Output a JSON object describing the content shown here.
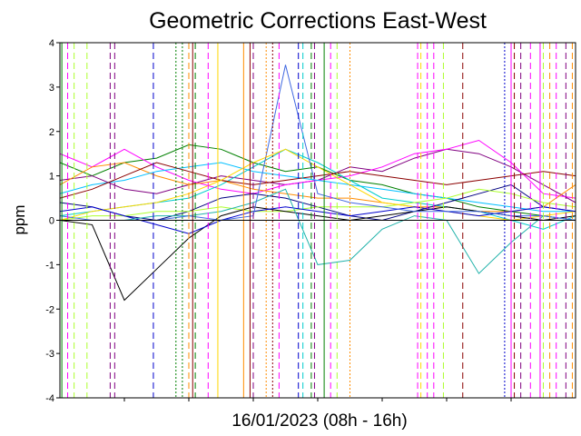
{
  "chart_data": {
    "type": "line",
    "title": "Geometric Corrections East-West",
    "xlabel": "16/01/2023 (08h - 16h)",
    "ylabel": "ppm",
    "xlim": [
      0,
      8
    ],
    "ylim": [
      -4,
      4
    ],
    "yticks": [
      -4,
      -3,
      -2,
      -1,
      0,
      1,
      2,
      3,
      4
    ],
    "x_minor_ticks": 8,
    "grid": false,
    "legend": "none",
    "series": [
      {
        "color": "#008000",
        "style": "solid",
        "x": [
          0,
          0.5,
          1,
          1.5,
          2,
          2.5,
          3,
          3.5,
          4,
          4.5,
          5,
          5.5,
          6,
          6.5,
          7,
          7.5,
          8
        ],
        "y": [
          1.3,
          1.0,
          1.3,
          1.4,
          1.7,
          1.6,
          1.3,
          1.1,
          1.2,
          0.9,
          0.8,
          0.6,
          0.5,
          0.3,
          0.2,
          0.1,
          0.0
        ]
      },
      {
        "color": "#800080",
        "style": "solid",
        "x": [
          0,
          0.5,
          1,
          1.5,
          2,
          2.5,
          3,
          3.5,
          4,
          4.5,
          5,
          5.5,
          6,
          6.5,
          7,
          7.5,
          8
        ],
        "y": [
          0.9,
          1.0,
          0.7,
          0.6,
          0.8,
          1.0,
          0.9,
          0.8,
          0.9,
          1.2,
          1.1,
          1.4,
          1.6,
          1.5,
          1.2,
          0.8,
          0.4
        ]
      },
      {
        "color": "#ff00ff",
        "style": "solid",
        "x": [
          0,
          0.5,
          1,
          1.5,
          2,
          2.5,
          3,
          3.5,
          4,
          4.5,
          5,
          5.5,
          6,
          6.5,
          7,
          7.5,
          8
        ],
        "y": [
          1.5,
          1.2,
          1.6,
          1.2,
          0.9,
          0.7,
          0.6,
          0.8,
          0.9,
          1.0,
          1.2,
          1.5,
          1.6,
          1.8,
          1.3,
          0.6,
          0.5
        ]
      },
      {
        "color": "#ff8c00",
        "style": "solid",
        "x": [
          0,
          0.5,
          1,
          1.5,
          2,
          2.5,
          3,
          3.5,
          4,
          4.5,
          5,
          5.5,
          6,
          6.5,
          7,
          7.5,
          8
        ],
        "y": [
          0.8,
          1.2,
          1.3,
          1.0,
          0.8,
          0.9,
          0.7,
          0.6,
          0.5,
          0.5,
          0.4,
          0.3,
          0.3,
          0.2,
          0.2,
          0.3,
          0.8
        ]
      },
      {
        "color": "#00bfff",
        "style": "solid",
        "x": [
          0,
          0.5,
          1,
          1.5,
          2,
          2.5,
          3,
          3.5,
          4,
          4.5,
          5,
          5.5,
          6,
          6.5,
          7,
          7.5,
          8
        ],
        "y": [
          0.6,
          0.8,
          0.9,
          1.1,
          1.2,
          1.3,
          1.1,
          1.0,
          0.9,
          0.8,
          0.7,
          0.6,
          0.5,
          0.4,
          0.3,
          0.2,
          0.2
        ]
      },
      {
        "color": "#00cccc",
        "style": "solid",
        "x": [
          0,
          0.5,
          1,
          1.5,
          2,
          2.5,
          3,
          3.5,
          4,
          4.5,
          5,
          5.5,
          6,
          6.5,
          7,
          7.5,
          8
        ],
        "y": [
          0.1,
          0.2,
          0.3,
          0.4,
          0.5,
          0.8,
          1.2,
          1.6,
          1.3,
          0.9,
          0.5,
          0.4,
          0.3,
          0.2,
          0.0,
          -0.2,
          0.1
        ]
      },
      {
        "color": "#000080",
        "style": "solid",
        "x": [
          0,
          0.5,
          1,
          1.5,
          2,
          2.5,
          3,
          3.5,
          4,
          4.5,
          5,
          5.5,
          6,
          6.5,
          7,
          7.5,
          8
        ],
        "y": [
          0.4,
          0.3,
          0.1,
          0.0,
          0.2,
          0.5,
          0.6,
          0.5,
          0.3,
          0.1,
          0.0,
          0.2,
          0.4,
          0.6,
          0.8,
          0.3,
          0.2
        ]
      },
      {
        "color": "#8b0000",
        "style": "solid",
        "x": [
          0,
          0.5,
          1,
          1.5,
          2,
          2.5,
          3,
          3.5,
          4,
          4.5,
          5,
          5.5,
          6,
          6.5,
          7,
          7.5,
          8
        ],
        "y": [
          0.5,
          0.7,
          1.0,
          1.3,
          1.1,
          0.9,
          0.8,
          0.9,
          1.0,
          1.1,
          1.0,
          0.9,
          0.8,
          0.9,
          1.0,
          1.1,
          1.0
        ]
      },
      {
        "color": "#adff2f",
        "style": "solid",
        "x": [
          0,
          0.5,
          1,
          1.5,
          2,
          2.5,
          3,
          3.5,
          4,
          4.5,
          5,
          5.5,
          6,
          6.5,
          7,
          7.5,
          8
        ],
        "y": [
          0.0,
          0.1,
          0.1,
          0.2,
          0.2,
          0.3,
          0.2,
          0.2,
          0.3,
          0.3,
          0.3,
          0.4,
          0.5,
          0.7,
          0.6,
          0.4,
          0.3
        ]
      },
      {
        "color": "#ffd700",
        "style": "solid",
        "x": [
          0,
          0.5,
          1,
          1.5,
          2,
          2.5,
          3,
          3.5,
          4,
          4.5,
          5,
          5.5,
          6,
          6.5,
          7,
          7.5,
          8
        ],
        "y": [
          0.0,
          0.2,
          0.3,
          0.4,
          0.6,
          0.9,
          1.3,
          1.6,
          1.2,
          0.8,
          0.4,
          0.3,
          0.2,
          0.1,
          0.0,
          0.1,
          0.2
        ]
      },
      {
        "color": "#000000",
        "style": "solid",
        "x": [
          0,
          0.5,
          1,
          1.5,
          2,
          2.5,
          3,
          3.5,
          4,
          4.5,
          5,
          5.5,
          6,
          6.5,
          7,
          7.5,
          8
        ],
        "y": [
          0.0,
          -0.1,
          -1.8,
          -1.1,
          -0.4,
          0.1,
          0.3,
          0.2,
          0.1,
          0.0,
          0.1,
          0.2,
          0.3,
          0.2,
          0.1,
          0.0,
          0.1
        ]
      },
      {
        "color": "#0000cd",
        "style": "solid",
        "x": [
          0,
          0.5,
          1,
          1.5,
          2,
          2.5,
          3,
          3.5,
          4,
          4.5,
          5,
          5.5,
          6,
          6.5,
          7,
          7.5,
          8
        ],
        "y": [
          0.2,
          0.3,
          0.1,
          -0.1,
          -0.3,
          0.0,
          0.2,
          0.3,
          0.2,
          0.1,
          0.2,
          0.3,
          0.2,
          0.1,
          0.2,
          0.3,
          0.2
        ]
      },
      {
        "color": "#20b2aa",
        "style": "solid",
        "x": [
          0,
          0.5,
          1,
          1.5,
          2,
          2.5,
          3,
          3.5,
          4,
          4.5,
          5,
          5.5,
          6,
          6.5,
          7,
          7.5,
          8
        ],
        "y": [
          0.0,
          0.0,
          0.0,
          0.1,
          0.1,
          0.2,
          0.4,
          0.7,
          -1.0,
          -0.9,
          -0.2,
          0.1,
          0.0,
          -1.2,
          -0.5,
          0.1,
          0.0
        ]
      },
      {
        "color": "#4169e1",
        "style": "solid",
        "x": [
          0,
          0.5,
          1,
          1.5,
          2,
          2.5,
          3,
          3.5,
          4,
          4.5,
          5,
          5.5,
          6,
          6.5,
          7,
          7.5,
          8
        ],
        "y": [
          0.1,
          0.0,
          0.0,
          0.0,
          0.1,
          0.0,
          0.1,
          3.5,
          0.6,
          0.4,
          0.3,
          0.2,
          0.2,
          0.2,
          0.1,
          0.1,
          0.0
        ]
      }
    ],
    "vlines": [
      {
        "x": 0.03,
        "color": "#008000",
        "style": "solid"
      },
      {
        "x": 0.12,
        "color": "#ff00ff",
        "style": "dashed"
      },
      {
        "x": 0.22,
        "color": "#adff2f",
        "style": "dashed"
      },
      {
        "x": 0.42,
        "color": "#adff2f",
        "style": "dashed"
      },
      {
        "x": 0.78,
        "color": "#800080",
        "style": "dashed"
      },
      {
        "x": 0.85,
        "color": "#800080",
        "style": "dashed"
      },
      {
        "x": 1.45,
        "color": "#0000cd",
        "style": "dashed"
      },
      {
        "x": 1.8,
        "color": "#008000",
        "style": "dotted"
      },
      {
        "x": 1.9,
        "color": "#008000",
        "style": "dotted"
      },
      {
        "x": 2.0,
        "color": "#ff8c00",
        "style": "dashed"
      },
      {
        "x": 2.06,
        "color": "#8b0000",
        "style": "solid"
      },
      {
        "x": 2.1,
        "color": "#008000",
        "style": "dashed"
      },
      {
        "x": 2.3,
        "color": "#ff00ff",
        "style": "dashed"
      },
      {
        "x": 2.45,
        "color": "#ffd700",
        "style": "solid"
      },
      {
        "x": 2.85,
        "color": "#ff8c00",
        "style": "solid"
      },
      {
        "x": 2.95,
        "color": "#8b0000",
        "style": "solid"
      },
      {
        "x": 3.0,
        "color": "#800080",
        "style": "dashed"
      },
      {
        "x": 3.2,
        "color": "#ff8c00",
        "style": "dotted"
      },
      {
        "x": 3.3,
        "color": "#8b0000",
        "style": "dotted"
      },
      {
        "x": 3.4,
        "color": "#ff00ff",
        "style": "dashed"
      },
      {
        "x": 3.7,
        "color": "#0000cd",
        "style": "dashed"
      },
      {
        "x": 3.77,
        "color": "#00cccc",
        "style": "dashed"
      },
      {
        "x": 3.9,
        "color": "#008000",
        "style": "dashed"
      },
      {
        "x": 3.95,
        "color": "#800080",
        "style": "dashed"
      },
      {
        "x": 4.1,
        "color": "#008000",
        "style": "solid"
      },
      {
        "x": 4.2,
        "color": "#ff00ff",
        "style": "dashed"
      },
      {
        "x": 4.3,
        "color": "#adff2f",
        "style": "dashed"
      },
      {
        "x": 4.5,
        "color": "#ff8c00",
        "style": "dotted"
      },
      {
        "x": 5.55,
        "color": "#ff00ff",
        "style": "dashed"
      },
      {
        "x": 5.6,
        "color": "#ffd700",
        "style": "dashed"
      },
      {
        "x": 5.7,
        "color": "#ff00ff",
        "style": "dashed"
      },
      {
        "x": 5.8,
        "color": "#ff00ff",
        "style": "dashed"
      },
      {
        "x": 5.95,
        "color": "#adff2f",
        "style": "dashed"
      },
      {
        "x": 6.25,
        "color": "#8b0000",
        "style": "dashed"
      },
      {
        "x": 6.9,
        "color": "#0000cd",
        "style": "dotted"
      },
      {
        "x": 7.0,
        "color": "#ff00ff",
        "style": "solid"
      },
      {
        "x": 7.05,
        "color": "#8b0000",
        "style": "dashed"
      },
      {
        "x": 7.15,
        "color": "#800080",
        "style": "dashed"
      },
      {
        "x": 7.3,
        "color": "#ff00ff",
        "style": "dashed"
      },
      {
        "x": 7.45,
        "color": "#ff00ff",
        "style": "solid"
      },
      {
        "x": 7.5,
        "color": "#adff2f",
        "style": "dashed"
      },
      {
        "x": 7.6,
        "color": "#ff8c00",
        "style": "dashed"
      },
      {
        "x": 7.7,
        "color": "#ff00ff",
        "style": "dashed"
      },
      {
        "x": 7.85,
        "color": "#800080",
        "style": "dashed"
      },
      {
        "x": 7.95,
        "color": "#ff8c00",
        "style": "dashed"
      }
    ]
  }
}
